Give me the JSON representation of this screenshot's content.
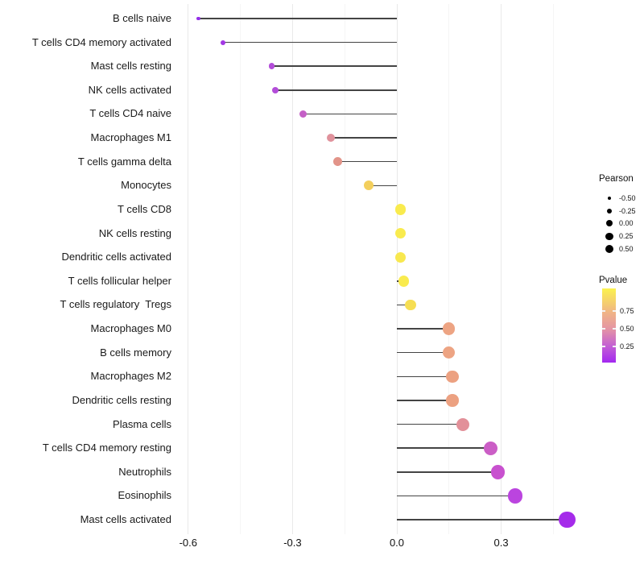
{
  "chart_data": {
    "type": "lollipop",
    "orientation": "horizontal",
    "title": "",
    "xlabel": "",
    "ylabel": "",
    "xlim": [
      -0.64,
      0.52
    ],
    "x_tick_values": [
      -0.6,
      -0.3,
      0.0,
      0.3
    ],
    "x_tick_labels": [
      "-0.6",
      "-0.3",
      "0.0",
      "0.3"
    ],
    "x_minor_tick_values": [
      -0.45,
      -0.15,
      0.15,
      0.45
    ],
    "grid": true,
    "size_encoding": "Pearson",
    "color_encoding": "Pvalue",
    "rows": [
      {
        "label": "B cells naive",
        "pearson": -0.57,
        "color": "#9430E8"
      },
      {
        "label": "T cells CD4 memory activated",
        "pearson": -0.5,
        "color": "#A338E4"
      },
      {
        "label": "Mast cells resting",
        "pearson": -0.36,
        "color": "#B34DD9"
      },
      {
        "label": "NK cells activated",
        "pearson": -0.35,
        "color": "#B34DD9"
      },
      {
        "label": "T cells CD4 naive",
        "pearson": -0.27,
        "color": "#C460C6"
      },
      {
        "label": "Macrophages M1",
        "pearson": -0.19,
        "color": "#E0929C"
      },
      {
        "label": "T cells gamma delta",
        "pearson": -0.17,
        "color": "#E29489"
      },
      {
        "label": "Monocytes",
        "pearson": -0.08,
        "color": "#F3CF5D"
      },
      {
        "label": "T cells CD8",
        "pearson": 0.01,
        "color": "#F9EB4E"
      },
      {
        "label": "NK cells resting",
        "pearson": 0.01,
        "color": "#F9EB4E"
      },
      {
        "label": "Dendritic cells activated",
        "pearson": 0.01,
        "color": "#F8E84F"
      },
      {
        "label": "T cells follicular helper",
        "pearson": 0.02,
        "color": "#F9EB4E"
      },
      {
        "label": "T cells regulatory  Tregs",
        "pearson": 0.04,
        "color": "#F6DE53"
      },
      {
        "label": "Macrophages M0",
        "pearson": 0.15,
        "color": "#EDA483"
      },
      {
        "label": "B cells memory",
        "pearson": 0.15,
        "color": "#EDA483"
      },
      {
        "label": "Macrophages M2",
        "pearson": 0.16,
        "color": "#ECA181"
      },
      {
        "label": "Dendritic cells resting",
        "pearson": 0.16,
        "color": "#ECA181"
      },
      {
        "label": "Plasma cells",
        "pearson": 0.19,
        "color": "#E29099"
      },
      {
        "label": "T cells CD4 memory resting",
        "pearson": 0.27,
        "color": "#CB5EC6"
      },
      {
        "label": "Neutrophils",
        "pearson": 0.29,
        "color": "#C851CF"
      },
      {
        "label": "Eosinophils",
        "pearson": 0.34,
        "color": "#BB44DF"
      },
      {
        "label": "Mast cells activated",
        "pearson": 0.49,
        "color": "#A52BEA"
      }
    ]
  },
  "legend_pearson": {
    "title": "Pearson",
    "entries": [
      {
        "label": "-0.50",
        "radius": 2.2
      },
      {
        "label": "-0.25",
        "radius": 3.2
      },
      {
        "label": "0.00",
        "radius": 4.1
      },
      {
        "label": "0.25",
        "radius": 4.6
      },
      {
        "label": "0.50",
        "radius": 5.2
      }
    ]
  },
  "legend_pvalue": {
    "title": "Pvalue",
    "tick_labels": [
      "0.75",
      "0.50",
      "0.25"
    ],
    "gradient_stops": [
      "#FBF24E",
      "#F0B585",
      "#E494A5",
      "#C35FD4",
      "#A328F0"
    ]
  }
}
